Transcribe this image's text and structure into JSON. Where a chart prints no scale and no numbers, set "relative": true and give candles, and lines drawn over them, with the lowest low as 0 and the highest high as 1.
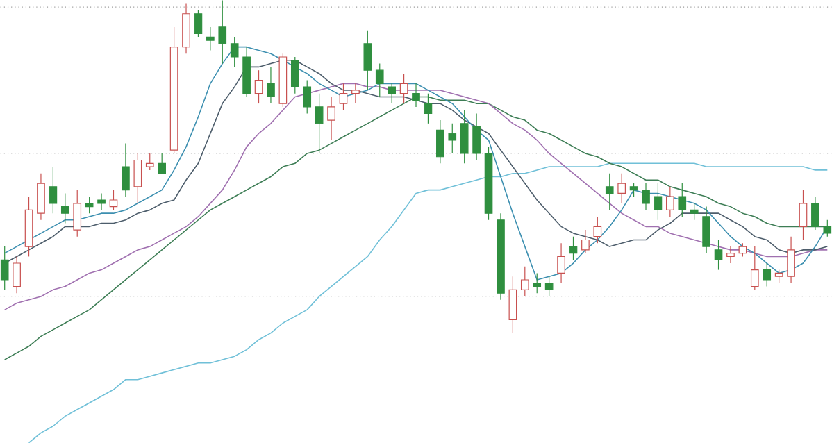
{
  "chart_data": {
    "type": "candlestick",
    "relative": true,
    "marker": "none",
    "line_style": "solid",
    "categories": [
      null,
      null,
      null,
      null,
      null,
      null,
      null,
      null,
      null,
      null,
      null,
      null,
      null,
      null,
      null,
      null,
      null,
      null,
      null,
      null,
      null,
      null,
      null,
      null,
      null,
      null,
      null,
      null,
      null,
      null,
      null,
      null,
      null,
      null,
      null,
      null,
      null,
      null,
      null,
      null,
      null,
      null,
      null,
      null,
      null,
      null,
      null,
      null,
      null,
      null,
      null,
      null,
      null,
      null,
      null,
      null,
      null,
      null,
      null,
      null,
      null,
      null,
      null,
      null,
      null,
      null,
      null,
      null,
      null
    ],
    "ohlc": [
      [
        0.22,
        0.26,
        0.13,
        0.16
      ],
      [
        0.14,
        0.23,
        0.12,
        0.21
      ],
      [
        0.26,
        0.41,
        0.23,
        0.37
      ],
      [
        0.36,
        0.48,
        0.34,
        0.45
      ],
      [
        0.44,
        0.5,
        0.36,
        0.39
      ],
      [
        0.38,
        0.42,
        0.33,
        0.36
      ],
      [
        0.31,
        0.43,
        0.29,
        0.39
      ],
      [
        0.39,
        0.41,
        0.36,
        0.38
      ],
      [
        0.4,
        0.42,
        0.37,
        0.39
      ],
      [
        0.38,
        0.43,
        0.37,
        0.4
      ],
      [
        0.5,
        0.57,
        0.41,
        0.43
      ],
      [
        0.44,
        0.54,
        0.39,
        0.52
      ],
      [
        0.5,
        0.54,
        0.49,
        0.51
      ],
      [
        0.51,
        0.54,
        0.48,
        0.48
      ],
      [
        0.55,
        0.92,
        0.54,
        0.86
      ],
      [
        0.86,
        0.99,
        0.84,
        0.96
      ],
      [
        0.96,
        0.97,
        0.89,
        0.9
      ],
      [
        0.89,
        0.92,
        0.85,
        0.88
      ],
      [
        0.92,
        1.0,
        0.81,
        0.87
      ],
      [
        0.87,
        0.89,
        0.8,
        0.83
      ],
      [
        0.83,
        0.86,
        0.71,
        0.72
      ],
      [
        0.72,
        0.79,
        0.69,
        0.76
      ],
      [
        0.75,
        0.8,
        0.69,
        0.71
      ],
      [
        0.69,
        0.84,
        0.68,
        0.83
      ],
      [
        0.82,
        0.83,
        0.72,
        0.74
      ],
      [
        0.74,
        0.76,
        0.66,
        0.68
      ],
      [
        0.68,
        0.72,
        0.54,
        0.63
      ],
      [
        0.64,
        0.71,
        0.58,
        0.68
      ],
      [
        0.69,
        0.75,
        0.67,
        0.72
      ],
      [
        0.72,
        0.75,
        0.69,
        0.73
      ],
      [
        0.87,
        0.91,
        0.73,
        0.79
      ],
      [
        0.79,
        0.81,
        0.71,
        0.75
      ],
      [
        0.74,
        0.75,
        0.69,
        0.72
      ],
      [
        0.72,
        0.78,
        0.69,
        0.75
      ],
      [
        0.72,
        0.75,
        0.68,
        0.7
      ],
      [
        0.69,
        0.72,
        0.63,
        0.66
      ],
      [
        0.61,
        0.64,
        0.51,
        0.53
      ],
      [
        0.6,
        0.63,
        0.54,
        0.58
      ],
      [
        0.63,
        0.67,
        0.51,
        0.54
      ],
      [
        0.62,
        0.66,
        0.52,
        0.54
      ],
      [
        0.54,
        0.56,
        0.34,
        0.36
      ],
      [
        0.34,
        0.36,
        0.1,
        0.12
      ],
      [
        0.04,
        0.17,
        0.0,
        0.13
      ],
      [
        0.13,
        0.2,
        0.11,
        0.16
      ],
      [
        0.15,
        0.18,
        0.12,
        0.14
      ],
      [
        0.15,
        0.17,
        0.11,
        0.13
      ],
      [
        0.18,
        0.27,
        0.15,
        0.23
      ],
      [
        0.26,
        0.29,
        0.22,
        0.24
      ],
      [
        0.25,
        0.31,
        0.24,
        0.28
      ],
      [
        0.29,
        0.35,
        0.27,
        0.32
      ],
      [
        0.44,
        0.48,
        0.37,
        0.42
      ],
      [
        0.42,
        0.48,
        0.39,
        0.45
      ],
      [
        0.44,
        0.45,
        0.41,
        0.43
      ],
      [
        0.43,
        0.45,
        0.37,
        0.39
      ],
      [
        0.41,
        0.45,
        0.34,
        0.37
      ],
      [
        0.37,
        0.44,
        0.35,
        0.41
      ],
      [
        0.41,
        0.45,
        0.35,
        0.37
      ],
      [
        0.37,
        0.39,
        0.34,
        0.36
      ],
      [
        0.35,
        0.38,
        0.24,
        0.26
      ],
      [
        0.25,
        0.28,
        0.19,
        0.22
      ],
      [
        0.23,
        0.26,
        0.21,
        0.24
      ],
      [
        0.24,
        0.27,
        0.23,
        0.26
      ],
      [
        0.14,
        0.26,
        0.13,
        0.19
      ],
      [
        0.19,
        0.21,
        0.14,
        0.16
      ],
      [
        0.17,
        0.19,
        0.15,
        0.18
      ],
      [
        0.17,
        0.29,
        0.15,
        0.25
      ],
      [
        0.32,
        0.43,
        0.28,
        0.39
      ],
      [
        0.39,
        0.41,
        0.31,
        0.32
      ],
      [
        0.32,
        0.34,
        0.29,
        0.3
      ]
    ],
    "colors": [
      "#2f8f3f",
      "#c8504f",
      "#c8504f",
      "#c8504f",
      "#2f8f3f",
      "#2f8f3f",
      "#c8504f",
      "#2f8f3f",
      "#2f8f3f",
      "#c8504f",
      "#2f8f3f",
      "#c8504f",
      "#c8504f",
      "#2f8f3f",
      "#c8504f",
      "#c8504f",
      "#2f8f3f",
      "#2f8f3f",
      "#2f8f3f",
      "#2f8f3f",
      "#2f8f3f",
      "#c8504f",
      "#2f8f3f",
      "#c8504f",
      "#2f8f3f",
      "#2f8f3f",
      "#2f8f3f",
      "#c8504f",
      "#c8504f",
      "#c8504f",
      "#2f8f3f",
      "#2f8f3f",
      "#2f8f3f",
      "#c8504f",
      "#2f8f3f",
      "#2f8f3f",
      "#2f8f3f",
      "#2f8f3f",
      "#2f8f3f",
      "#2f8f3f",
      "#2f8f3f",
      "#2f8f3f",
      "#c8504f",
      "#c8504f",
      "#2f8f3f",
      "#2f8f3f",
      "#c8504f",
      "#2f8f3f",
      "#c8504f",
      "#c8504f",
      "#2f8f3f",
      "#c8504f",
      "#2f8f3f",
      "#2f8f3f",
      "#2f8f3f",
      "#c8504f",
      "#2f8f3f",
      "#2f8f3f",
      "#2f8f3f",
      "#2f8f3f",
      "#c8504f",
      "#c8504f",
      "#c8504f",
      "#2f8f3f",
      "#c8504f",
      "#c8504f",
      "#c8504f",
      "#2f8f3f",
      "#2f8f3f"
    ],
    "series": [
      {
        "type": "line",
        "color": "#70c0d8",
        "values": [
          null,
          null,
          -0.33,
          -0.3,
          -0.28,
          -0.25,
          -0.23,
          -0.21,
          -0.19,
          -0.17,
          -0.14,
          -0.14,
          -0.13,
          -0.12,
          -0.11,
          -0.1,
          -0.09,
          -0.09,
          -0.08,
          -0.07,
          -0.05,
          -0.02,
          0,
          0.03,
          0.05,
          0.07,
          0.11,
          0.14,
          0.17,
          0.2,
          0.23,
          0.28,
          0.32,
          0.37,
          0.42,
          0.43,
          0.43,
          0.44,
          0.45,
          0.46,
          0.47,
          0.47,
          0.48,
          0.48,
          0.49,
          0.5,
          0.5,
          0.5,
          0.5,
          0.5,
          0.51,
          0.51,
          0.51,
          0.51,
          0.51,
          0.51,
          0.51,
          0.51,
          0.5,
          0.5,
          0.5,
          0.5,
          0.5,
          0.5,
          0.5,
          0.5,
          0.5,
          0.49,
          0.49
        ]
      },
      {
        "type": "line",
        "color": "#3d7d55",
        "values": [
          -0.08,
          -0.06,
          -0.04,
          -0.01,
          0.01,
          0.03,
          0.05,
          0.07,
          0.1,
          0.13,
          0.16,
          0.19,
          0.22,
          0.25,
          0.28,
          0.31,
          0.34,
          0.37,
          0.39,
          0.41,
          0.43,
          0.45,
          0.47,
          0.5,
          0.51,
          0.54,
          0.55,
          0.57,
          0.59,
          0.61,
          0.63,
          0.65,
          0.67,
          0.69,
          0.71,
          0.71,
          0.7,
          0.7,
          0.7,
          0.69,
          0.69,
          0.67,
          0.65,
          0.64,
          0.61,
          0.6,
          0.58,
          0.56,
          0.54,
          0.53,
          0.51,
          0.5,
          0.48,
          0.46,
          0.46,
          0.44,
          0.43,
          0.42,
          0.41,
          0.39,
          0.38,
          0.36,
          0.35,
          0.33,
          0.32,
          0.32,
          0.32,
          0.32,
          0.32
        ]
      },
      {
        "type": "line",
        "color": "#a070b0",
        "values": [
          0.07,
          0.09,
          0.1,
          0.11,
          0.13,
          0.14,
          0.16,
          0.18,
          0.19,
          0.21,
          0.23,
          0.25,
          0.26,
          0.28,
          0.3,
          0.32,
          0.35,
          0.39,
          0.43,
          0.49,
          0.56,
          0.6,
          0.63,
          0.67,
          0.71,
          0.72,
          0.73,
          0.74,
          0.75,
          0.75,
          0.74,
          0.74,
          0.73,
          0.73,
          0.73,
          0.73,
          0.73,
          0.72,
          0.71,
          0.7,
          0.69,
          0.66,
          0.63,
          0.61,
          0.58,
          0.54,
          0.51,
          0.48,
          0.45,
          0.42,
          0.39,
          0.36,
          0.34,
          0.32,
          0.32,
          0.3,
          0.29,
          0.28,
          0.27,
          0.26,
          0.25,
          0.25,
          0.24,
          0.23,
          0.23,
          0.23,
          0.24,
          0.25,
          0.25
        ]
      },
      {
        "type": "line",
        "color": "#4d5d6b",
        "values": [
          0.21,
          0.23,
          0.25,
          0.27,
          0.29,
          0.32,
          0.32,
          0.32,
          0.33,
          0.33,
          0.34,
          0.36,
          0.37,
          0.39,
          0.4,
          0.46,
          0.51,
          0.6,
          0.69,
          0.74,
          0.8,
          0.8,
          0.81,
          0.82,
          0.82,
          0.8,
          0.78,
          0.75,
          0.73,
          0.73,
          0.72,
          0.71,
          0.71,
          0.71,
          0.7,
          0.69,
          0.69,
          0.67,
          0.64,
          0.62,
          0.6,
          0.55,
          0.5,
          0.45,
          0.4,
          0.36,
          0.32,
          0.3,
          0.29,
          0.28,
          0.26,
          0.27,
          0.28,
          0.28,
          0.31,
          0.33,
          0.36,
          0.36,
          0.36,
          0.36,
          0.34,
          0.32,
          0.29,
          0.28,
          0.25,
          0.24,
          0.25,
          0.25,
          0.26
        ]
      },
      {
        "type": "line",
        "color": "#3c8fb0",
        "values": [
          0.24,
          0.26,
          0.28,
          0.3,
          0.32,
          0.34,
          0.34,
          0.35,
          0.36,
          0.36,
          0.37,
          0.39,
          0.41,
          0.43,
          0.49,
          0.56,
          0.65,
          0.75,
          0.81,
          0.86,
          0.86,
          0.85,
          0.84,
          0.82,
          0.8,
          0.78,
          0.75,
          0.73,
          0.71,
          0.72,
          0.73,
          0.75,
          0.75,
          0.75,
          0.75,
          0.73,
          0.71,
          0.69,
          0.65,
          0.61,
          0.58,
          0.47,
          0.36,
          0.26,
          0.16,
          0.17,
          0.18,
          0.21,
          0.25,
          0.28,
          0.32,
          0.37,
          0.43,
          0.42,
          0.42,
          0.41,
          0.4,
          0.39,
          0.37,
          0.33,
          0.29,
          0.26,
          0.24,
          0.21,
          0.18,
          0.19,
          0.21,
          0.26,
          0.32
        ]
      }
    ],
    "ref_lines": [
      {
        "axis": "y",
        "value": 0.98,
        "color": "#9a9a9a",
        "line_style": "dotted"
      },
      {
        "axis": "y",
        "value": 0.54,
        "color": "#9a9a9a",
        "line_style": "dotted"
      },
      {
        "axis": "y",
        "value": 0.11,
        "color": "#9a9a9a",
        "line_style": "dotted"
      }
    ]
  }
}
